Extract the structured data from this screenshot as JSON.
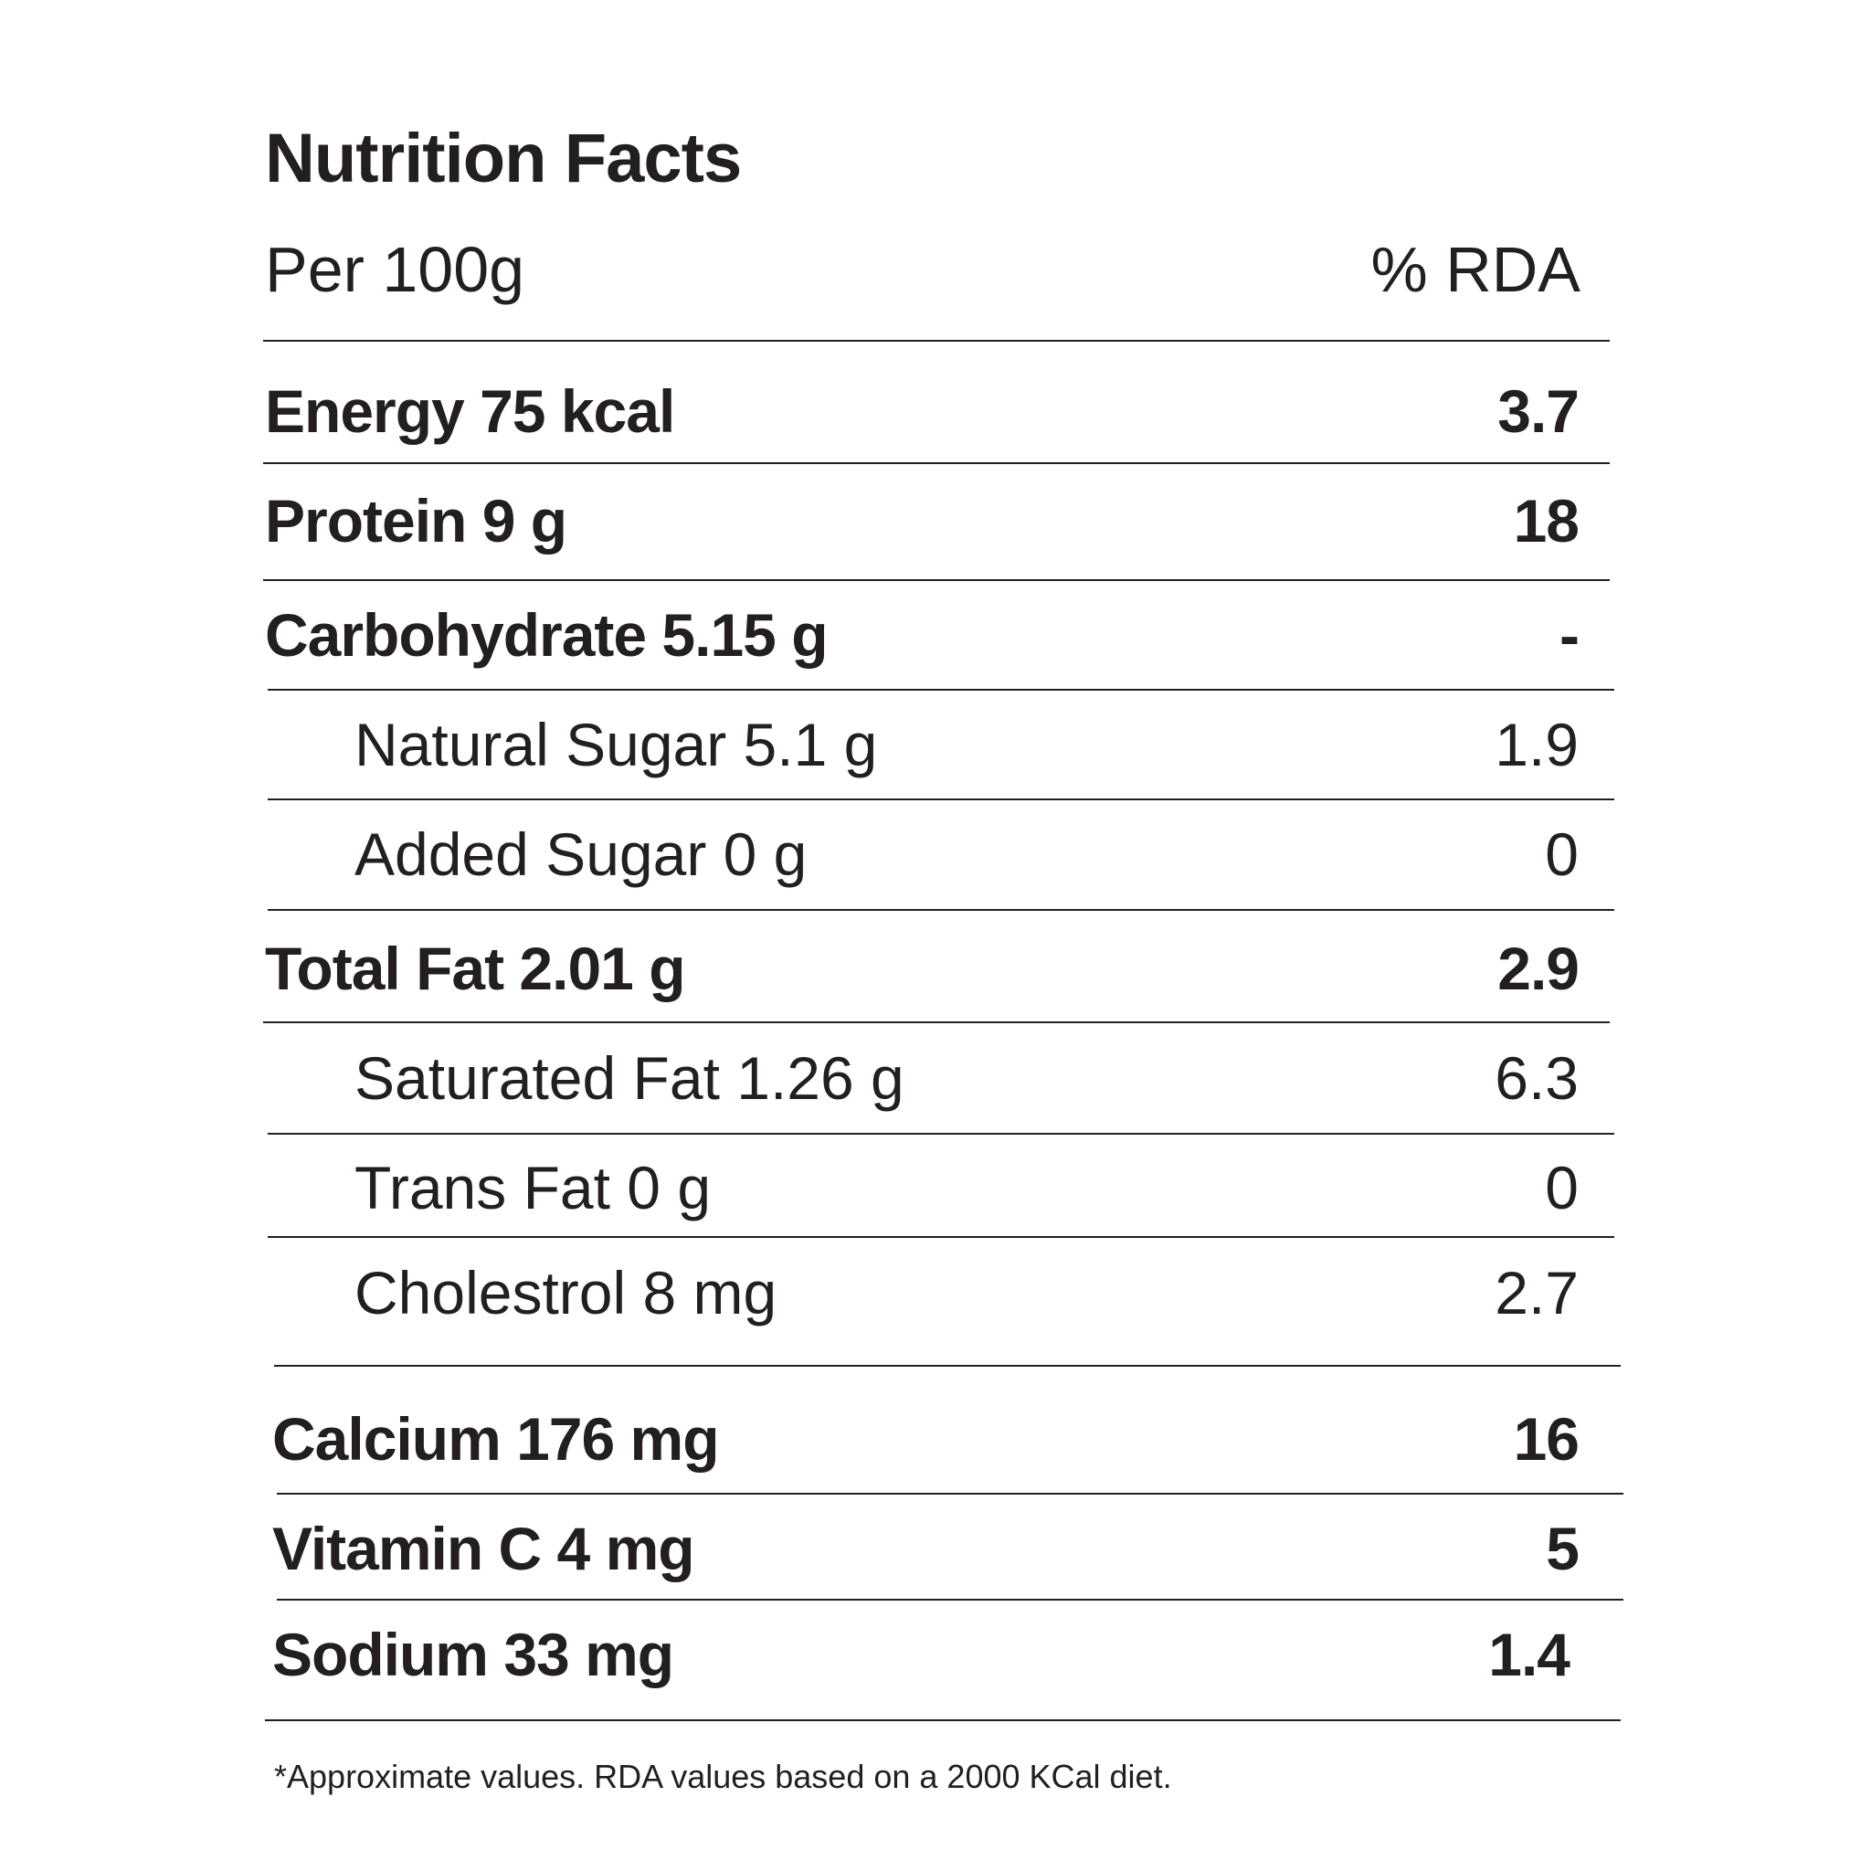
{
  "title": "Nutrition Facts",
  "header": {
    "serving": "Per 100g",
    "rda_label": "% RDA"
  },
  "rows": [
    {
      "name": "Energy 75 kcal",
      "rda": "3.7"
    },
    {
      "name": "Protein 9 g",
      "rda": "18"
    },
    {
      "name": "Carbohydrate 5.15 g",
      "rda": "-"
    },
    {
      "name": "Natural Sugar 5.1 g",
      "rda": "1.9"
    },
    {
      "name": "Added Sugar 0 g",
      "rda": "0"
    },
    {
      "name": "Total Fat 2.01 g",
      "rda": "2.9"
    },
    {
      "name": "Saturated Fat 1.26 g",
      "rda": "6.3"
    },
    {
      "name": "Trans Fat 0 g",
      "rda": "0"
    },
    {
      "name": "Cholestrol 8 mg",
      "rda": "2.7"
    },
    {
      "name": "Calcium 176 mg",
      "rda": "16"
    },
    {
      "name": "Vitamin C 4 mg",
      "rda": "5"
    },
    {
      "name": "Sodium 33 mg",
      "rda": "1.4"
    }
  ],
  "footnote": "*Approximate values. RDA values based on a 2000 KCal diet."
}
